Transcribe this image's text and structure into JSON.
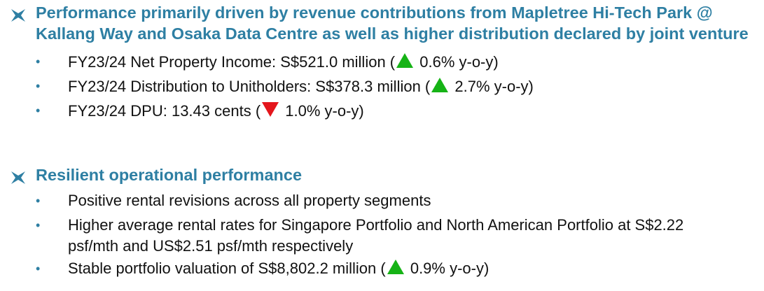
{
  "sections": [
    {
      "heading": "Performance primarily driven by revenue contributions from Mapletree Hi-Tech Park @ Kallang Way and Osaka Data Centre as well as higher distribution declared by joint venture",
      "items": [
        {
          "text_before": "FY23/24 Net Property Income: S$521.0 million (",
          "indicator": "up-triangle-icon",
          "text_after": " 0.6% y-o-y)"
        },
        {
          "text_before": "FY23/24 Distribution to Unitholders: S$378.3 million (",
          "indicator": "up-triangle-icon",
          "text_after": " 2.7% y-o-y)"
        },
        {
          "text_before": "FY23/24 DPU: 13.43 cents (",
          "indicator": "down-triangle-icon",
          "text_after": " 1.0% y-o-y)"
        }
      ]
    },
    {
      "heading": "Resilient operational performance",
      "items": [
        {
          "text": "Positive rental revisions across all property segments"
        },
        {
          "text": "Higher average rental rates for Singapore Portfolio and North American Portfolio at S$2.22 psf/mth and US$2.51 psf/mth respectively"
        },
        {
          "text_before": "Stable portfolio valuation of S$8,802.2 million (",
          "indicator": "up-triangle-icon",
          "text_after": " 0.9% y-o-y)"
        }
      ]
    }
  ],
  "colors": {
    "heading": "#2e7fa3",
    "body_text": "#111111",
    "increase": "#16b316",
    "decrease": "#e4161c"
  }
}
